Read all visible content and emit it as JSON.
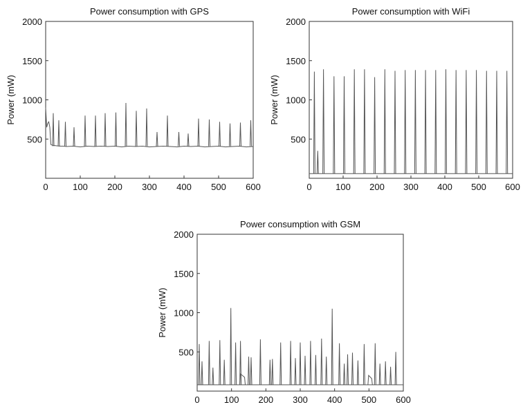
{
  "chart_data": [
    {
      "type": "line",
      "title": "Power consumption with GPS",
      "xlabel": "",
      "ylabel": "Power (mW)",
      "xlim": [
        0,
        600
      ],
      "ylim": [
        0,
        2000
      ],
      "x_ticks": [
        0,
        100,
        200,
        300,
        400,
        500,
        600
      ],
      "y_ticks": [
        500,
        1000,
        1500,
        2000
      ],
      "grid": false,
      "color": "#555555",
      "baseline": 410,
      "series": [
        {
          "x": [
            0,
            3,
            6,
            9,
            12,
            15,
            20,
            30,
            40,
            50,
            60,
            80,
            100,
            120,
            140,
            160,
            180,
            200,
            220,
            240,
            260,
            280,
            300,
            320,
            340,
            360,
            380,
            400,
            420,
            440,
            460,
            480,
            500,
            520,
            540,
            560,
            580,
            600
          ],
          "y": [
            900,
            650,
            700,
            720,
            650,
            430,
            420,
            415,
            410,
            410,
            405,
            410,
            400,
            410,
            405,
            410,
            405,
            410,
            400,
            410,
            405,
            410,
            400,
            405,
            410,
            405,
            400,
            410,
            405,
            410,
            400,
            405,
            410,
            400,
            405,
            410,
            400,
            405
          ]
        }
      ],
      "spikes": [
        {
          "x": 22,
          "y": 830
        },
        {
          "x": 38,
          "y": 740
        },
        {
          "x": 57,
          "y": 720
        },
        {
          "x": 82,
          "y": 650
        },
        {
          "x": 114,
          "y": 800
        },
        {
          "x": 144,
          "y": 800
        },
        {
          "x": 172,
          "y": 830
        },
        {
          "x": 203,
          "y": 840
        },
        {
          "x": 232,
          "y": 960
        },
        {
          "x": 262,
          "y": 860
        },
        {
          "x": 292,
          "y": 890
        },
        {
          "x": 322,
          "y": 590
        },
        {
          "x": 352,
          "y": 800
        },
        {
          "x": 385,
          "y": 590
        },
        {
          "x": 412,
          "y": 570
        },
        {
          "x": 442,
          "y": 760
        },
        {
          "x": 473,
          "y": 750
        },
        {
          "x": 503,
          "y": 720
        },
        {
          "x": 533,
          "y": 700
        },
        {
          "x": 563,
          "y": 710
        },
        {
          "x": 593,
          "y": 740
        }
      ]
    },
    {
      "type": "line",
      "title": "Power consumption with WiFi",
      "xlabel": "",
      "ylabel": "Power (mW)",
      "xlim": [
        0,
        600
      ],
      "ylim": [
        0,
        2000
      ],
      "x_ticks": [
        0,
        100,
        200,
        300,
        400,
        500,
        600
      ],
      "y_ticks": [
        500,
        1000,
        1500,
        2000
      ],
      "grid": false,
      "color": "#555555",
      "baseline": 60,
      "spikes": [
        {
          "x": 15,
          "y": 1360
        },
        {
          "x": 25,
          "y": 350
        },
        {
          "x": 42,
          "y": 1390
        },
        {
          "x": 73,
          "y": 1300
        },
        {
          "x": 103,
          "y": 1300
        },
        {
          "x": 133,
          "y": 1390
        },
        {
          "x": 163,
          "y": 1390
        },
        {
          "x": 193,
          "y": 1290
        },
        {
          "x": 223,
          "y": 1390
        },
        {
          "x": 253,
          "y": 1370
        },
        {
          "x": 283,
          "y": 1380
        },
        {
          "x": 313,
          "y": 1380
        },
        {
          "x": 343,
          "y": 1380
        },
        {
          "x": 373,
          "y": 1380
        },
        {
          "x": 403,
          "y": 1390
        },
        {
          "x": 433,
          "y": 1380
        },
        {
          "x": 463,
          "y": 1380
        },
        {
          "x": 493,
          "y": 1380
        },
        {
          "x": 523,
          "y": 1370
        },
        {
          "x": 553,
          "y": 1370
        },
        {
          "x": 583,
          "y": 1370
        }
      ]
    },
    {
      "type": "line",
      "title": "Power consumption with GSM",
      "xlabel": "",
      "ylabel": "Power (mW)",
      "xlim": [
        0,
        600
      ],
      "ylim": [
        0,
        2000
      ],
      "x_ticks": [
        0,
        100,
        200,
        300,
        400,
        500,
        600
      ],
      "y_ticks": [
        500,
        1000,
        1500,
        2000
      ],
      "grid": false,
      "color": "#555555",
      "baseline": 80,
      "bumps": [
        {
          "from": 124,
          "to": 140,
          "y": 220
        },
        {
          "from": 497,
          "to": 510,
          "y": 200
        }
      ],
      "spikes": [
        {
          "x": 6,
          "y": 600
        },
        {
          "x": 14,
          "y": 380
        },
        {
          "x": 35,
          "y": 640
        },
        {
          "x": 46,
          "y": 300
        },
        {
          "x": 66,
          "y": 650
        },
        {
          "x": 79,
          "y": 400
        },
        {
          "x": 98,
          "y": 1060
        },
        {
          "x": 112,
          "y": 620
        },
        {
          "x": 126,
          "y": 640
        },
        {
          "x": 150,
          "y": 440
        },
        {
          "x": 157,
          "y": 430
        },
        {
          "x": 184,
          "y": 660
        },
        {
          "x": 212,
          "y": 400
        },
        {
          "x": 219,
          "y": 410
        },
        {
          "x": 243,
          "y": 620
        },
        {
          "x": 272,
          "y": 640
        },
        {
          "x": 286,
          "y": 420
        },
        {
          "x": 300,
          "y": 620
        },
        {
          "x": 314,
          "y": 450
        },
        {
          "x": 330,
          "y": 640
        },
        {
          "x": 345,
          "y": 460
        },
        {
          "x": 362,
          "y": 670
        },
        {
          "x": 376,
          "y": 440
        },
        {
          "x": 393,
          "y": 1050
        },
        {
          "x": 414,
          "y": 610
        },
        {
          "x": 428,
          "y": 350
        },
        {
          "x": 438,
          "y": 470
        },
        {
          "x": 452,
          "y": 490
        },
        {
          "x": 468,
          "y": 390
        },
        {
          "x": 486,
          "y": 600
        },
        {
          "x": 518,
          "y": 610
        },
        {
          "x": 532,
          "y": 350
        },
        {
          "x": 548,
          "y": 380
        },
        {
          "x": 563,
          "y": 310
        },
        {
          "x": 578,
          "y": 500
        }
      ]
    }
  ]
}
